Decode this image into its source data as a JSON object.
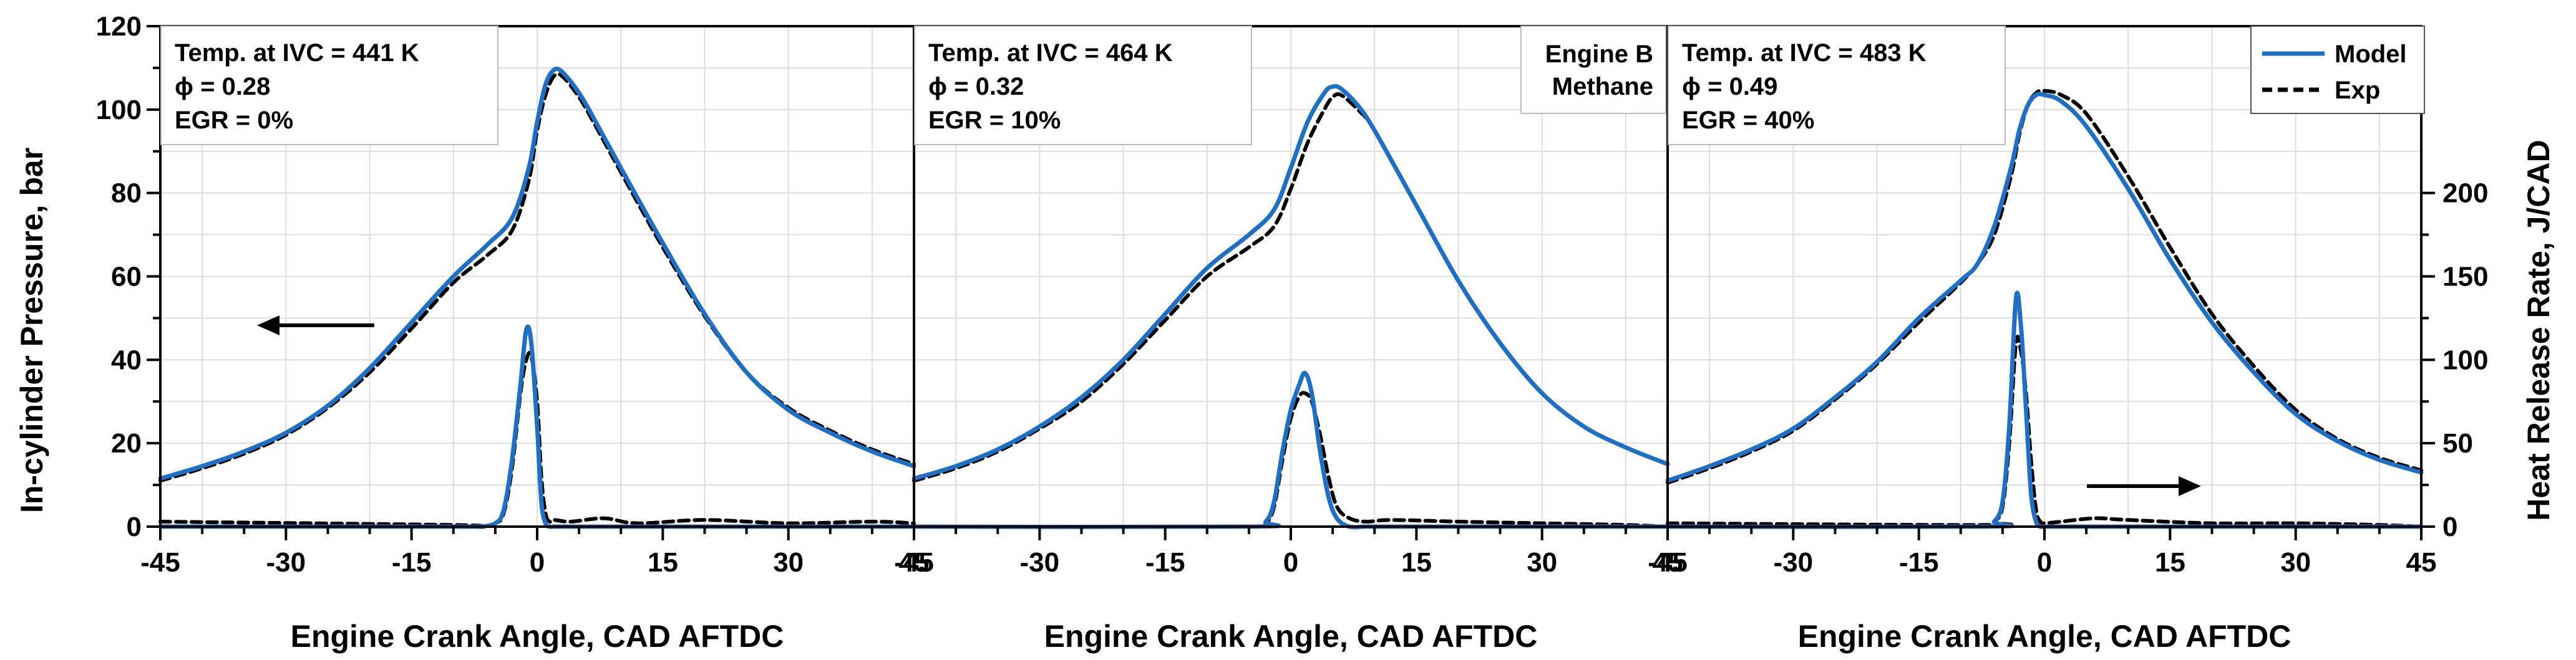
{
  "colors": {
    "model": "#1f6fc4",
    "exp": "#000000",
    "grid": "#dddddd",
    "frame": "#000000"
  },
  "chart_data": {
    "type": "line",
    "x_ticks": [
      -45,
      -30,
      -15,
      0,
      15,
      30,
      45
    ],
    "y_left_ticks": [
      0,
      20,
      40,
      60,
      80,
      100,
      120
    ],
    "y_right_ticks": [
      0,
      50,
      100,
      150,
      200
    ],
    "xlim": [
      -45,
      45
    ],
    "ylim_left": [
      0,
      120
    ],
    "ylim_right": [
      0,
      300
    ],
    "xlabel": "Engine Crank Angle, CAD AFTDC",
    "ylabel_left": "In-cylinder Pressure, bar",
    "ylabel_right": "Heat Release Rate, J/CAD",
    "legend": {
      "position": "top-right",
      "entries": [
        {
          "label": "Model",
          "style": "solid"
        },
        {
          "label": "Exp",
          "style": "dashed"
        }
      ]
    },
    "engine_label": [
      "Engine B",
      "Methane"
    ],
    "panels": [
      {
        "info": [
          "Temp. at IVC = 441 K",
          "ϕ = 0.28",
          "EGR = 0%"
        ],
        "pressure": {
          "x": [
            -45,
            -40,
            -35,
            -30,
            -25,
            -20,
            -15,
            -10,
            -6,
            -3,
            -1,
            0,
            1,
            2,
            3,
            5,
            7,
            10,
            15,
            20,
            25,
            30,
            35,
            40,
            45
          ],
          "model": [
            11.5,
            14.5,
            18,
            22.5,
            29,
            38,
            49,
            60,
            67.5,
            74,
            86,
            97,
            106,
            109.5,
            109,
            104,
            97,
            86,
            68,
            51,
            37,
            28,
            22.5,
            18,
            14.5
          ],
          "exp": [
            11,
            14,
            17.5,
            22,
            28.5,
            37,
            47.5,
            58.5,
            65,
            71,
            83,
            95,
            103.5,
            108,
            108,
            103,
            96,
            85,
            67,
            50.5,
            37,
            28.5,
            23,
            18.5,
            15
          ]
        },
        "hrr": {
          "x": [
            -45,
            -10,
            -7,
            -5,
            -4,
            -3,
            -2,
            -1.3,
            -0.7,
            0,
            0.5,
            1,
            1.5,
            2,
            4,
            8,
            12,
            20,
            30,
            40,
            45
          ],
          "model": [
            0,
            0,
            0,
            2,
            10,
            40,
            85,
            118,
            110,
            60,
            15,
            2,
            0,
            0,
            0,
            0,
            0,
            0,
            0,
            0,
            0
          ],
          "exp": [
            3,
            1,
            0,
            2,
            8,
            35,
            80,
            100,
            102,
            75,
            30,
            8,
            3,
            4,
            3,
            5,
            2,
            4,
            2,
            3,
            2
          ]
        }
      },
      {
        "info": [
          "Temp. at IVC = 464 K",
          "ϕ = 0.32",
          "EGR = 10%"
        ],
        "pressure": {
          "x": [
            -45,
            -40,
            -35,
            -30,
            -25,
            -20,
            -15,
            -10,
            -5,
            -2,
            0,
            2,
            4,
            5,
            6,
            8,
            10,
            15,
            20,
            25,
            30,
            35,
            40,
            45
          ],
          "model": [
            11.5,
            14.5,
            18.5,
            24,
            31,
            40,
            51,
            62,
            70,
            76,
            86,
            97,
            104,
            105.5,
            105,
            101,
            95,
            77,
            59,
            44,
            32,
            24,
            19,
            15
          ],
          "exp": [
            11,
            14,
            18,
            23.5,
            30,
            39,
            49.5,
            60,
            67,
            72,
            81,
            92,
            100,
            103,
            103.5,
            100,
            95,
            77,
            59,
            44,
            32,
            24,
            19,
            15
          ]
        },
        "hrr": {
          "x": [
            -45,
            -5,
            -3,
            -2,
            -1,
            0,
            1,
            1.7,
            2.5,
            3.5,
            4.5,
            5.5,
            7,
            9,
            12,
            20,
            30,
            40,
            45
          ],
          "model": [
            0,
            0,
            3,
            15,
            45,
            70,
            85,
            92,
            80,
            45,
            18,
            5,
            0,
            0,
            0,
            0,
            0,
            0,
            0
          ],
          "exp": [
            0,
            0,
            2,
            12,
            40,
            65,
            78,
            80,
            75,
            55,
            30,
            12,
            5,
            3,
            4,
            3,
            2,
            1,
            0
          ]
        }
      },
      {
        "info": [
          "Temp. at IVC = 483 K",
          "ϕ = 0.49",
          "EGR = 40%"
        ],
        "pressure": {
          "x": [
            -45,
            -40,
            -35,
            -30,
            -25,
            -20,
            -15,
            -10,
            -8,
            -6,
            -4,
            -3,
            -2,
            -1,
            0,
            2,
            5,
            10,
            15,
            20,
            25,
            30,
            35,
            40,
            45
          ],
          "model": [
            11,
            14.5,
            18.5,
            23.5,
            31,
            39.5,
            50,
            59,
            63,
            72,
            86,
            95,
            101,
            103.5,
            103.5,
            102,
            96,
            81,
            64,
            49,
            37,
            27,
            20.5,
            16,
            13
          ],
          "exp": [
            10.5,
            14,
            18,
            23,
            30.5,
            39,
            49,
            58.5,
            63,
            70,
            84,
            94,
            101,
            104,
            104.5,
            103.5,
            99,
            84,
            67,
            51,
            38.5,
            28,
            21,
            16.5,
            13.5
          ]
        },
        "hrr": {
          "x": [
            -45,
            -7,
            -6,
            -5,
            -4.2,
            -3.4,
            -2.8,
            -2.2,
            -1.6,
            -1,
            -0.5,
            0,
            2,
            6,
            10,
            20,
            30,
            40,
            45
          ],
          "model": [
            0,
            0,
            3,
            15,
            60,
            137,
            120,
            70,
            20,
            3,
            0,
            0,
            0,
            0,
            0,
            0,
            0,
            0,
            0
          ],
          "exp": [
            2,
            1,
            3,
            12,
            50,
            110,
            105,
            80,
            40,
            10,
            3,
            2,
            3,
            5,
            4,
            2,
            2,
            1,
            0
          ]
        }
      }
    ]
  }
}
